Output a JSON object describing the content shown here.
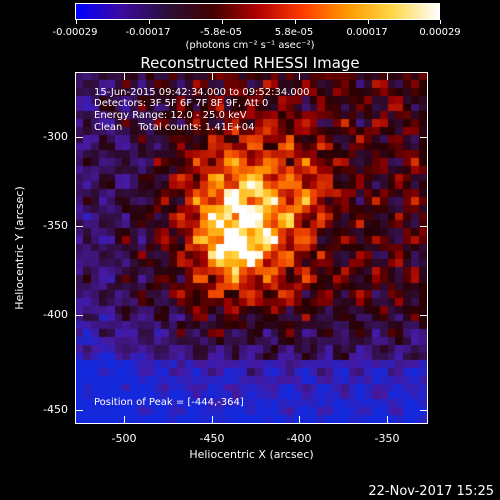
{
  "colorbar": {
    "tick_labels": [
      "-0.00029",
      "-0.00017",
      "-5.8e-05",
      "5.8e-05",
      "0.00017",
      "0.00029"
    ],
    "units": "(photons cm⁻² s⁻¹ asec⁻²)",
    "gradient": [
      "#0000ff",
      "#3c0aa0",
      "#2a0f3a",
      "#400000",
      "#b00000",
      "#ff3c00",
      "#ff9a00",
      "#ffd84a",
      "#ffffff"
    ]
  },
  "plot": {
    "title": "Reconstructed RHESSI Image",
    "info": {
      "time": "15-Jun-2015 09:42:34.000 to 09:52:34.000",
      "detectors": "Detectors: 3F 5F 6F 7F 8F 9F, Att 0",
      "energy": "Energy Range: 12.0 - 25.0 keV",
      "clean": "Clean     Total counts: 1.41E+04"
    },
    "peak": "Position of Peak = [-444,-364]",
    "x_label": "Heliocentric X (arcsec)",
    "y_label": "Heliocentric Y (arcsec)",
    "x_ticks": [
      "-500",
      "-450",
      "-400",
      "-350"
    ],
    "y_ticks": [
      "-300",
      "-350",
      "-400",
      "-450"
    ],
    "x_range": [
      -528,
      -328
    ],
    "y_range": [
      -462,
      -262
    ]
  },
  "footer": {
    "date": "22-Nov-2017 15:25"
  }
}
